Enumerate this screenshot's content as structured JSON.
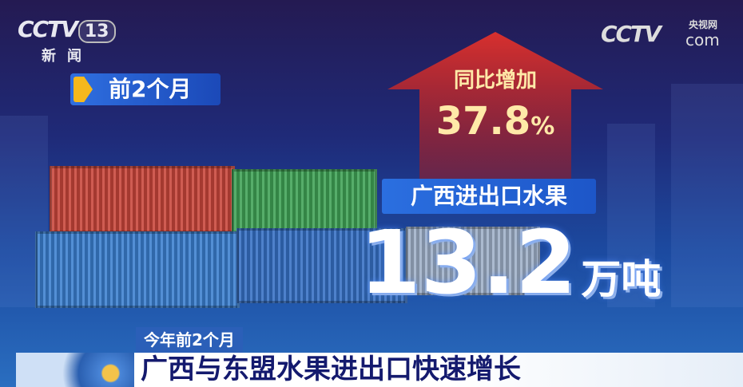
{
  "logo": {
    "brand": "CCTV",
    "channel": "13",
    "channel_name": "新闻"
  },
  "watermark": {
    "brand": "CCTV",
    "cn": "央视网",
    "com": "com"
  },
  "period_tag": "前2个月",
  "growth": {
    "label": "同比增加",
    "value": "37.8",
    "unit": "%"
  },
  "metric": {
    "label": "广西进出口水果",
    "value": "13.2",
    "unit": "万吨"
  },
  "colors": {
    "arrow": "#c8282c",
    "accent_yellow": "#f6b81c",
    "headline_text": "#141a6e"
  },
  "caption": {
    "tag": "今年前2个月",
    "headline": "广西与东盟水果进出口快速增长"
  }
}
